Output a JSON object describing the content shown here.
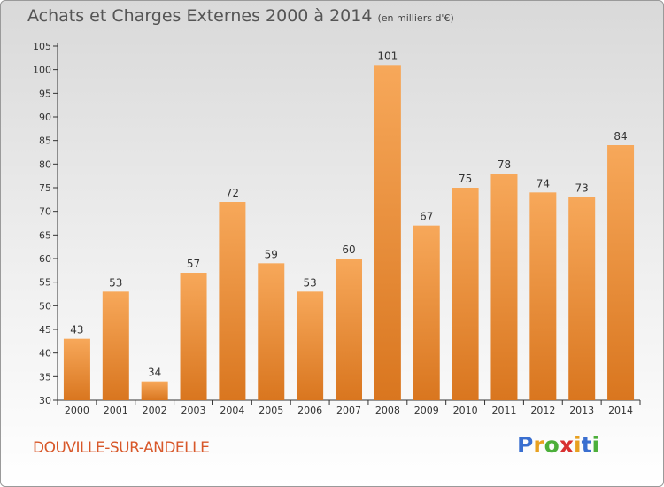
{
  "title": "Achats et Charges Externes 2000 à 2014",
  "unit_note": "(en milliers d'€)",
  "commune": "DOUVILLE-SUR-ANDELLE",
  "logo": {
    "text": "Proxiti",
    "letters": [
      "P",
      "r",
      "o",
      "x",
      "i",
      "t",
      "i"
    ]
  },
  "colors": {
    "bar_light": "#f7a85a",
    "bar_dark": "#d9761f",
    "commune": "#d8582a",
    "axis": "#333333"
  },
  "chart_data": {
    "type": "bar",
    "title": "Achats et Charges Externes 2000 à 2014",
    "subtitle": "(en milliers d'€)",
    "categories": [
      "2000",
      "2001",
      "2002",
      "2003",
      "2004",
      "2005",
      "2006",
      "2007",
      "2008",
      "2009",
      "2010",
      "2011",
      "2012",
      "2013",
      "2014"
    ],
    "values": [
      43,
      53,
      34,
      57,
      72,
      59,
      53,
      60,
      101,
      67,
      75,
      78,
      74,
      73,
      84
    ],
    "ylim": [
      30,
      105
    ],
    "yticks": [
      30,
      35,
      40,
      45,
      50,
      55,
      60,
      65,
      70,
      75,
      80,
      85,
      90,
      95,
      100,
      105
    ],
    "grid": false,
    "legend": "none"
  }
}
